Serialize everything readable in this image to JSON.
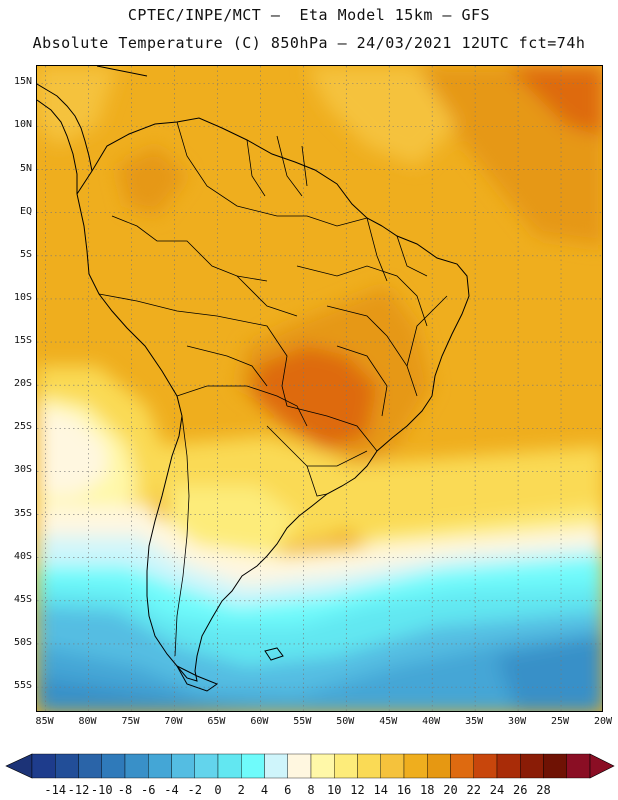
{
  "header": {
    "title_line1": "CPTEC/INPE/MCT –  Eta Model 15km – GFS",
    "title_line2": "Absolute Temperature (C) 850hPa – 24/03/2021 12UTC fct=74h"
  },
  "map": {
    "variable": "Absolute Temperature",
    "units": "C",
    "level": "850hPa",
    "model": "Eta Model 15km",
    "driver": "GFS",
    "run": "24/03/2021 12UTC",
    "forecast": "fct=74h",
    "lat_range": [
      -58,
      17
    ],
    "lon_range": [
      -86,
      -20
    ],
    "lat_labels": [
      "15N",
      "10N",
      "5N",
      "EQ",
      "5S",
      "10S",
      "15S",
      "20S",
      "25S",
      "30S",
      "35S",
      "40S",
      "45S",
      "50S",
      "55S"
    ],
    "lat_values": [
      15,
      10,
      5,
      0,
      -5,
      -10,
      -15,
      -20,
      -25,
      -30,
      -35,
      -40,
      -45,
      -50,
      -55
    ],
    "lon_labels": [
      "85W",
      "80W",
      "75W",
      "70W",
      "65W",
      "60W",
      "55W",
      "50W",
      "45W",
      "40W",
      "35W",
      "30W",
      "25W",
      "20W"
    ],
    "lon_values": [
      -85,
      -80,
      -75,
      -70,
      -65,
      -60,
      -55,
      -50,
      -45,
      -40,
      -35,
      -30,
      -25,
      -20
    ],
    "grid": "dotted, every 5 degrees"
  },
  "colorbar": {
    "labels": [
      "-14",
      "-12",
      "-10",
      "-8",
      "-6",
      "-4",
      "-2",
      "0",
      "2",
      "4",
      "6",
      "8",
      "10",
      "12",
      "14",
      "16",
      "18",
      "20",
      "22",
      "24",
      "26",
      "28"
    ],
    "colors": [
      "#1e3c8c",
      "#224e98",
      "#2a64a8",
      "#2f7aba",
      "#3990c8",
      "#44a6d6",
      "#54bde2",
      "#63d4ec",
      "#62e7f1",
      "#6ffbfb",
      "#cff5fb",
      "#fff7e0",
      "#fff8a8",
      "#fdec7a",
      "#fada55",
      "#f5c23c",
      "#efae1e",
      "#e69812",
      "#de6a10",
      "#c8460c",
      "#a92c08",
      "#8a1c06",
      "#6f1204",
      "#8a0e24"
    ],
    "left_arrow_color": "#1c3377",
    "right_arrow_color": "#8a0e24"
  }
}
